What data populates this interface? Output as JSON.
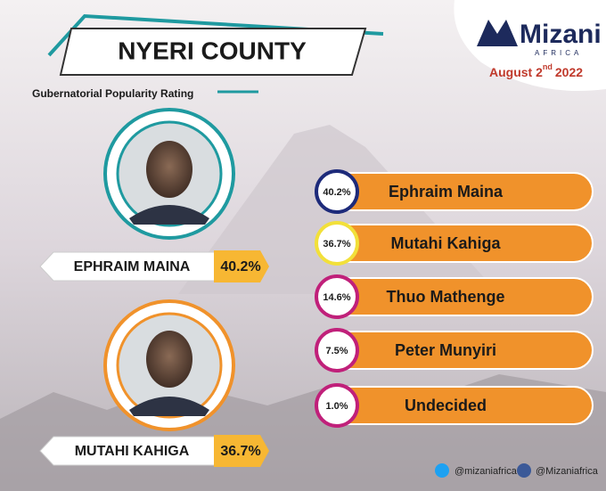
{
  "header": {
    "title": "NYERI COUNTY",
    "subtitle": "Gubernatorial Popularity Rating"
  },
  "brand": {
    "name": "Mizani",
    "tagline": "AFRICA",
    "date": [
      "August 2",
      "nd",
      "2022"
    ]
  },
  "featured": [
    {
      "name": "EPHRAIM MAINA",
      "rating": "40.2%"
    },
    {
      "name": "MUTAHI KAHIGA",
      "rating": "36.7%"
    }
  ],
  "results": [
    {
      "rating": "40.2%",
      "name": "Ephraim Maina"
    },
    {
      "rating": "36.7%",
      "name": "Mutahi Kahiga"
    },
    {
      "rating": "14.6%",
      "name": "Thuo Mathenge"
    },
    {
      "rating": "7.5%",
      "name": "Peter Munyiri"
    },
    {
      "rating": "1.0%",
      "name": "Undecided"
    }
  ],
  "footer": {
    "twitter": "@mizaniafrica",
    "facebook": "@Mizaniafrica"
  }
}
